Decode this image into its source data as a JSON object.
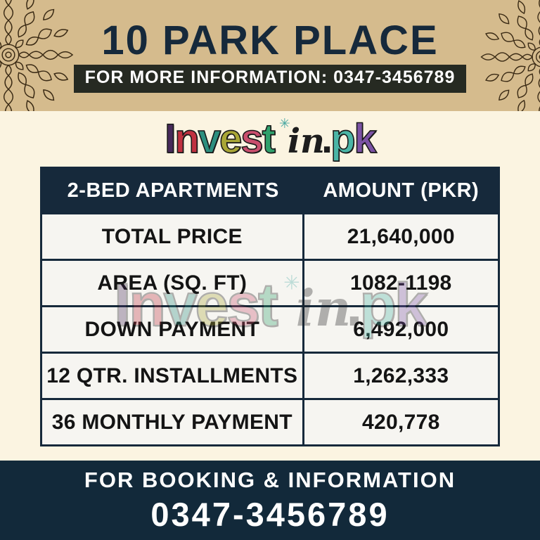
{
  "header": {
    "title": "10 PARK PLACE",
    "info_label": "FOR MORE INFORMATION: 0347-3456789"
  },
  "logo": {
    "text": "Investin.pk",
    "letters": [
      {
        "char": "I",
        "color": "#472a5a",
        "cls": "block"
      },
      {
        "char": "n",
        "color": "#c03140",
        "cls": "block"
      },
      {
        "char": "v",
        "color": "#2d8f7f",
        "cls": "block"
      },
      {
        "char": "e",
        "color": "#a9a636",
        "cls": "block"
      },
      {
        "char": "s",
        "color": "#c94f6d",
        "cls": "block"
      },
      {
        "char": "t",
        "color": "#2fa06b",
        "cls": "block"
      },
      {
        "char": "✳",
        "color": "#49a8a2",
        "cls": "star"
      },
      {
        "char": "i",
        "color": "#1d1d1d",
        "cls": "script"
      },
      {
        "char": "n",
        "color": "#1d1d1d",
        "cls": "script"
      },
      {
        "char": ".",
        "color": "#1d1d1d",
        "cls": "dot"
      },
      {
        "char": "p",
        "color": "#4ab5a6",
        "cls": "block"
      },
      {
        "char": "k",
        "color": "#7b52a4",
        "cls": "block"
      }
    ]
  },
  "table": {
    "columns": [
      "2-BED APARTMENTS",
      "AMOUNT (PKR)"
    ],
    "rows": [
      {
        "label": "TOTAL PRICE",
        "value": "21,640,000"
      },
      {
        "label": "AREA (SQ. FT)",
        "value": "1082-1198"
      },
      {
        "label": "DOWN PAYMENT",
        "value": "6,492,000"
      },
      {
        "label": "12 QTR. INSTALLMENTS",
        "value": "1,262,333"
      },
      {
        "label": "36 MONTHLY PAYMENT",
        "value": "420,778"
      }
    ]
  },
  "footer": {
    "heading": "FOR BOOKING & INFORMATION",
    "phone": "0347-3456789"
  },
  "colors": {
    "tan_banner": "#d5bb8d",
    "cream_background": "#fbf4e1",
    "navy": "#16293b",
    "footer_navy": "#12293a",
    "info_bar_dark": "#262a22",
    "cell_background": "#f6f5f1",
    "cell_text": "#141414",
    "mandala_line": "#3a2a14"
  }
}
